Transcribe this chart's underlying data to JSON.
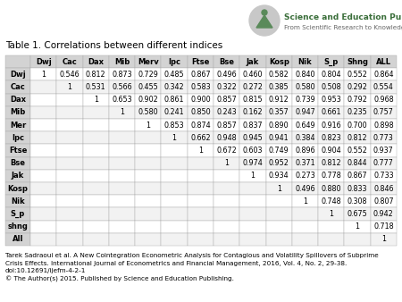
{
  "title": "Table 1. Correlations between different indices",
  "col_headers": [
    "",
    "Dwj",
    "Cac",
    "Dax",
    "Mib",
    "Merv",
    "Ipc",
    "Ftse",
    "Bse",
    "Jak",
    "Kosp",
    "Nik",
    "S_p",
    "Shng",
    "ALL"
  ],
  "row_headers": [
    "Dwj",
    "Cac",
    "Dax",
    "Mib",
    "Mer",
    "Ipc",
    "Ftse",
    "Bse",
    "Jak",
    "Kosp",
    "Nik",
    "S_p",
    "shng",
    "All"
  ],
  "data": [
    [
      "1",
      "0.546",
      "0.812",
      "0.873",
      "0.729",
      "0.485",
      "0.867",
      "0.496",
      "0.460",
      "0.582",
      "0.840",
      "0.804",
      "0.552",
      "0.864"
    ],
    [
      "",
      "1",
      "0.531",
      "0.566",
      "0.455",
      "0.342",
      "0.583",
      "0.322",
      "0.272",
      "0.385",
      "0.580",
      "0.508",
      "0.292",
      "0.554"
    ],
    [
      "",
      "",
      "1",
      "0.653",
      "0.902",
      "0.861",
      "0.900",
      "0.857",
      "0.815",
      "0.912",
      "0.739",
      "0.953",
      "0.792",
      "0.968"
    ],
    [
      "",
      "",
      "",
      "1",
      "0.580",
      "0.241",
      "0.850",
      "0.243",
      "0.162",
      "0.357",
      "0.947",
      "0.661",
      "0.235",
      "0.757"
    ],
    [
      "",
      "",
      "",
      "",
      "1",
      "0.853",
      "0.874",
      "0.857",
      "0.837",
      "0.890",
      "0.649",
      "0.916",
      "0.700",
      "0.898"
    ],
    [
      "",
      "",
      "",
      "",
      "",
      "1",
      "0.662",
      "0.948",
      "0.945",
      "0.941",
      "0.384",
      "0.823",
      "0.812",
      "0.773"
    ],
    [
      "",
      "",
      "",
      "",
      "",
      "",
      "1",
      "0.672",
      "0.603",
      "0.749",
      "0.896",
      "0.904",
      "0.552",
      "0.937"
    ],
    [
      "",
      "",
      "",
      "",
      "",
      "",
      "",
      "1",
      "0.974",
      "0.952",
      "0.371",
      "0.812",
      "0.844",
      "0.777"
    ],
    [
      "",
      "",
      "",
      "",
      "",
      "",
      "",
      "",
      "1",
      "0.934",
      "0.273",
      "0.778",
      "0.867",
      "0.733"
    ],
    [
      "",
      "",
      "",
      "",
      "",
      "",
      "",
      "",
      "",
      "1",
      "0.496",
      "0.880",
      "0.833",
      "0.846"
    ],
    [
      "",
      "",
      "",
      "",
      "",
      "",
      "",
      "",
      "",
      "",
      "1",
      "0.748",
      "0.308",
      "0.807"
    ],
    [
      "",
      "",
      "",
      "",
      "",
      "",
      "",
      "",
      "",
      "",
      "",
      "1",
      "0.675",
      "0.942"
    ],
    [
      "",
      "",
      "",
      "",
      "",
      "",
      "",
      "",
      "",
      "",
      "",
      "",
      "1",
      "0.718"
    ],
    [
      "",
      "",
      "",
      "",
      "",
      "",
      "",
      "",
      "",
      "",
      "",
      "",
      "",
      "1"
    ]
  ],
  "footer_line1": "Tarek Sadraoui et al. A New Cointegration Econometric Analysis for Contagious and Volatility Spillovers of Subprime",
  "footer_line2": "Crisis Effects. International Journal of Econometrics and Financial Management, 2016, Vol. 4, No. 2, 29-38.",
  "footer_line3": "doi:10.12691/ijefm-4-2-1",
  "footer_line4": "© The Author(s) 2015. Published by Science and Education Publishing.",
  "header_bg": "#d3d3d3",
  "cell_bg_even": "#ffffff",
  "cell_bg_odd": "#f2f2f2",
  "border_color": "#aaaaaa",
  "text_color": "#000000",
  "title_fontsize": 7.5,
  "header_fontsize": 6.0,
  "cell_fontsize": 5.8,
  "footer_fontsize": 5.2,
  "logo_text1": "Science and Education Publishing",
  "logo_text2": "From Scientific Research to Knowledge",
  "logo_circle_color": "#c8c8c8",
  "logo_mountain_color": "#5a8a5a",
  "logo_text1_color": "#3a6e3a",
  "logo_text2_color": "#666666"
}
